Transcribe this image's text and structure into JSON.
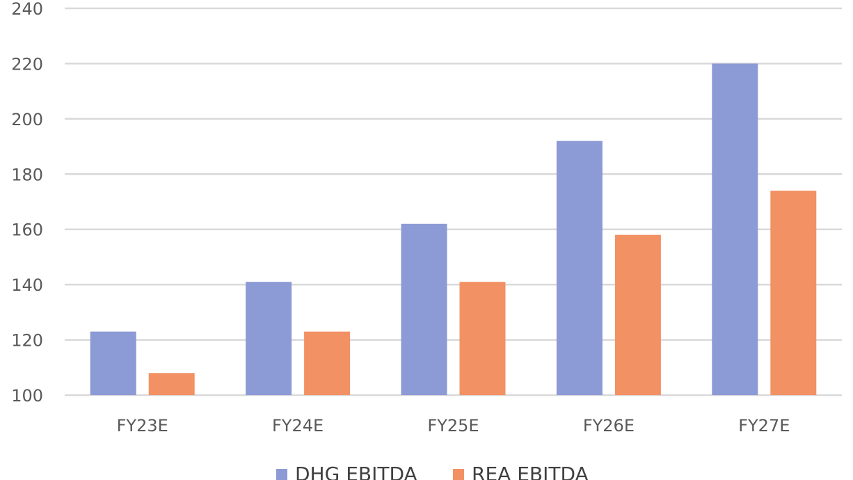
{
  "chart_data": {
    "type": "bar",
    "title": "",
    "xlabel": "",
    "ylabel": "",
    "categories": [
      "FY23E",
      "FY24E",
      "FY25E",
      "FY26E",
      "FY27E"
    ],
    "series": [
      {
        "name": "DHG EBITDA",
        "color": "#8c9ad5",
        "values": [
          123,
          141,
          162,
          192,
          220
        ]
      },
      {
        "name": "REA EBITDA",
        "color": "#f29163",
        "values": [
          108,
          123,
          141,
          158,
          174
        ]
      }
    ],
    "ylim": [
      100,
      240
    ],
    "yticks": [
      100,
      120,
      140,
      160,
      180,
      200,
      220,
      240
    ],
    "grid": true,
    "legend_position": "bottom"
  }
}
